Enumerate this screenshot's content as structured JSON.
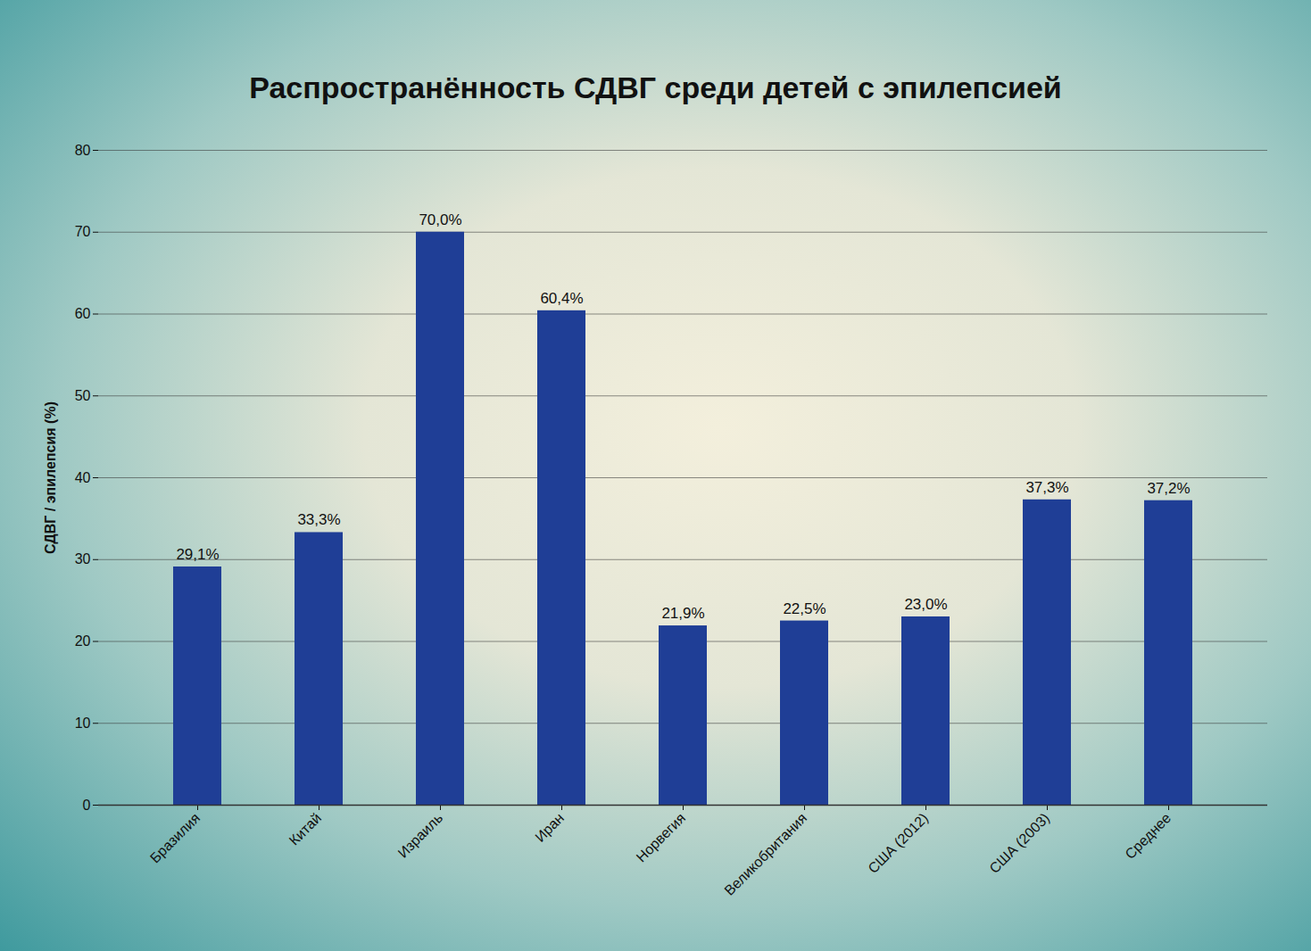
{
  "chart_data": {
    "type": "bar",
    "title": "Распространённость СДВГ среди детей с эпилепсией",
    "y_label": "СДВГ / эпилепсия (%)",
    "categories": [
      "Бразилия",
      "Китай",
      "Израиль",
      "Иран",
      "Норвегия",
      "Великобритания",
      "США (2012)",
      "США (2003)",
      "Среднее"
    ],
    "values": [
      29.1,
      33.3,
      70.0,
      60.4,
      21.9,
      22.5,
      23.0,
      37.3,
      37.2
    ],
    "value_labels": [
      "29,1%",
      "33,3%",
      "70,0%",
      "60,4%",
      "21,9%",
      "22,5%",
      "23,0%",
      "37,3%",
      "37,2%"
    ],
    "data_labels": true,
    "color": "#1f3e96",
    "ylim": [
      0,
      80
    ],
    "yticks": [
      0,
      10,
      20,
      30,
      40,
      50,
      60,
      70,
      80
    ],
    "grid": true
  }
}
